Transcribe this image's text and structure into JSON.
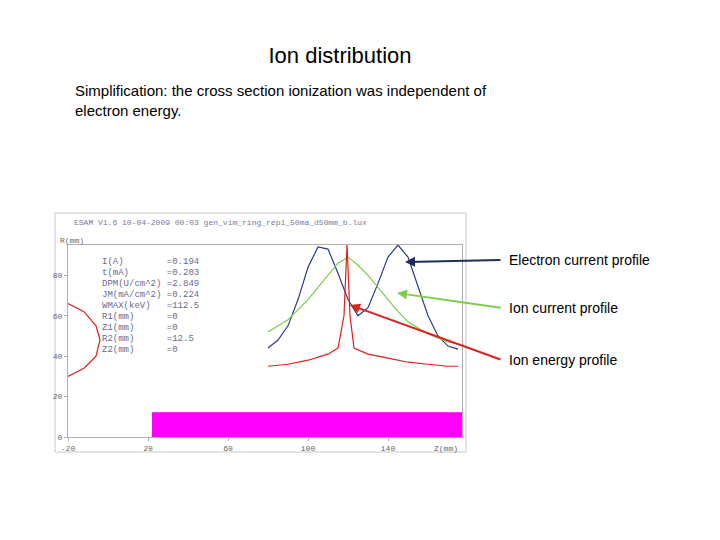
{
  "chart_data": {
    "type": "line",
    "title": "Ion distribution",
    "subtitle": "Simplification: the cross section ionization was independent of electron energy.",
    "header": "ESAM V1.6 10-04-2009 00:03 gen_vim_ring_rep1_50ma_d50mm_b.lux",
    "xlabel": "Z(mm)",
    "ylabel": "R(mm)",
    "xlim": [
      -20,
      177
    ],
    "ylim": [
      0,
      95
    ],
    "xticks": [
      -20,
      20,
      60,
      100,
      140
    ],
    "yticks": [
      0,
      20,
      40,
      60,
      80
    ],
    "grid": false,
    "panel_text": [
      "I(A)        =0.194",
      "t(mA)       =0.203",
      "DPM(U/cm^2) =2.849",
      "JM(mA/cm^2) =0.224",
      "WMAX(keV)   =112.5",
      "R1(mm)      =0",
      "Z1(mm)      =0",
      "R2(mm)      =12.5",
      "Z2(mm)      =0"
    ],
    "series": [
      {
        "name": "Electron current profile",
        "color": "#2b3a8c",
        "x": [
          80,
          85,
          90,
          95,
          100,
          105,
          110,
          115,
          120,
          125,
          130,
          135,
          140,
          145,
          150,
          155,
          160,
          165,
          170,
          175
        ],
        "values": [
          44,
          48,
          55,
          68,
          84,
          94,
          93,
          81,
          68,
          60,
          64,
          76,
          89,
          95,
          89,
          74,
          60,
          50,
          45,
          43.5
        ]
      },
      {
        "name": "Ion current profile",
        "color": "#7ccd4a",
        "x": [
          80,
          85,
          90,
          95,
          100,
          105,
          110,
          115,
          120,
          125,
          130,
          135,
          140,
          145,
          150,
          155,
          160,
          165,
          170,
          175
        ],
        "values": [
          52,
          55,
          58,
          63,
          68,
          74,
          80,
          86,
          89,
          85,
          80,
          74,
          68,
          62,
          57,
          54,
          51,
          49,
          47,
          46
        ]
      },
      {
        "name": "Ion energy profile",
        "color": "#e0201c",
        "x": [
          80,
          90,
          100,
          110,
          115,
          118,
          119.5,
          121,
          123,
          130,
          140,
          150,
          160,
          170,
          175
        ],
        "values": [
          35,
          36,
          38,
          41,
          44,
          60,
          95,
          60,
          44,
          41,
          39,
          37,
          36,
          35,
          35
        ]
      },
      {
        "color": "#ff00ff",
        "type": "area",
        "x": [
          22,
          177
        ],
        "values": [
          12,
          12
        ]
      },
      {
        "color": "#e0201c",
        "x": [
          -20,
          -12,
          -6,
          -4,
          -6,
          -12,
          -20
        ],
        "values": [
          66,
          62,
          55,
          48,
          40,
          34,
          30
        ]
      }
    ]
  }
}
